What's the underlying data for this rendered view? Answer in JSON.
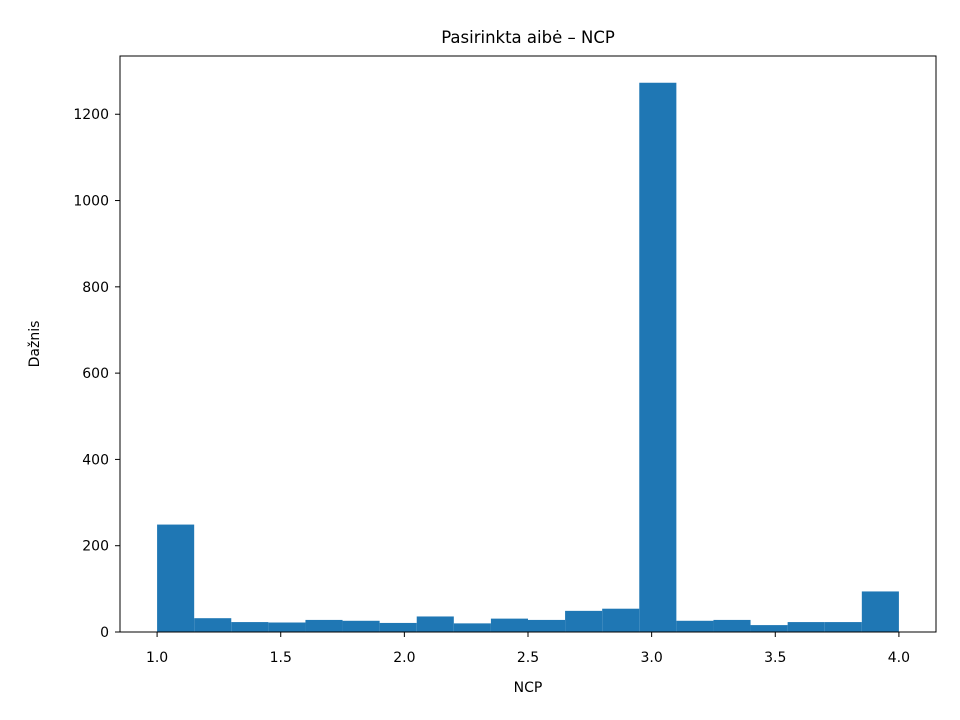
{
  "chart_data": {
    "type": "bar",
    "title": "Pasirinkta aibė – NCP",
    "xlabel": "NCP",
    "ylabel": "Dažnis",
    "xlim": [
      0.85,
      4.15
    ],
    "ylim": [
      0,
      1335
    ],
    "xticks": [
      "1.0",
      "1.5",
      "2.0",
      "2.5",
      "3.0",
      "3.5",
      "4.0"
    ],
    "yticks": [
      "0",
      "200",
      "400",
      "600",
      "800",
      "1000",
      "1200"
    ],
    "bin_edges": [
      1.0,
      1.15,
      1.3,
      1.45,
      1.6,
      1.75,
      1.9,
      2.05,
      2.2,
      2.35,
      2.5,
      2.65,
      2.8,
      2.95,
      3.1,
      3.25,
      3.4,
      3.55,
      3.7,
      3.85,
      4.0
    ],
    "values": [
      249,
      32,
      23,
      22,
      28,
      26,
      21,
      36,
      20,
      31,
      28,
      49,
      54,
      1273,
      26,
      28,
      16,
      23,
      23,
      94
    ],
    "bar_color": "#1f77b4",
    "grid": false,
    "legend": "none"
  }
}
